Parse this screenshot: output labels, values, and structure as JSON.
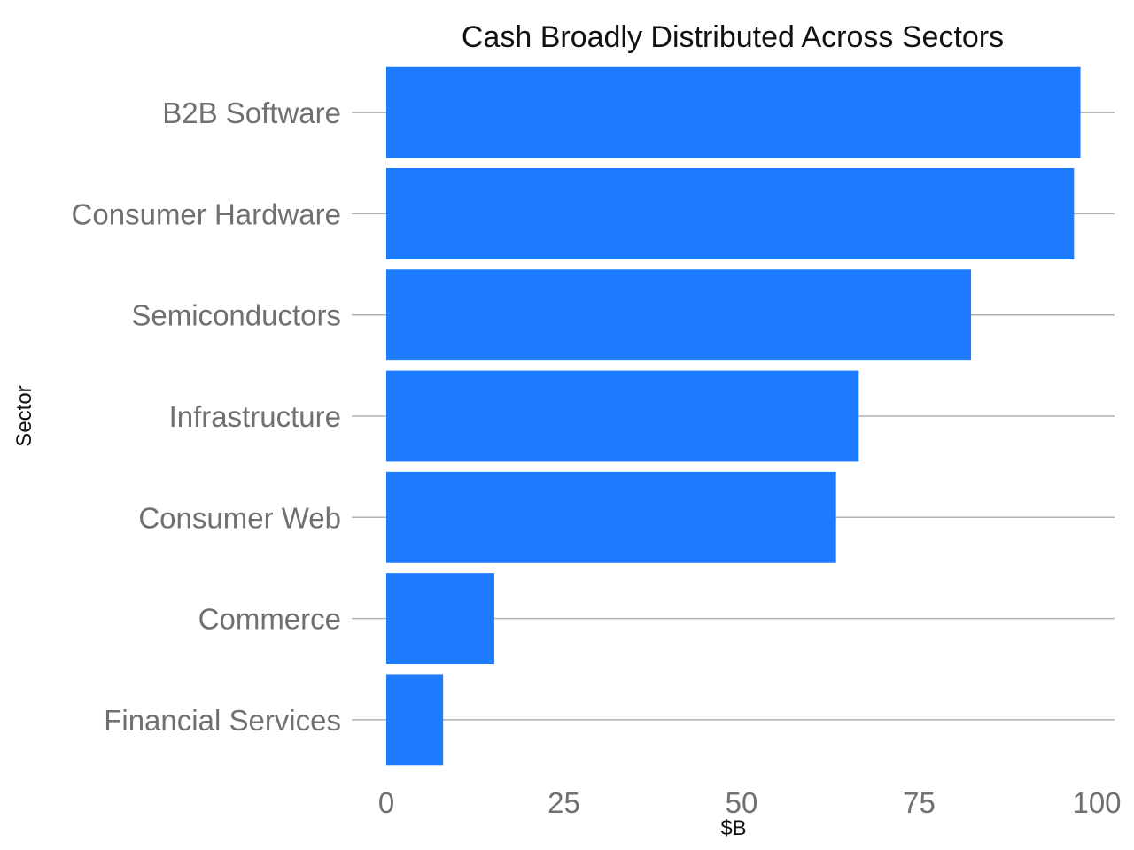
{
  "chart_data": {
    "type": "bar",
    "orientation": "horizontal",
    "title": "Cash Broadly Distributed Across Sectors",
    "xlabel": "$B",
    "ylabel": "Sector",
    "categories": [
      "B2B Software",
      "Consumer Hardware",
      "Semiconductors",
      "Infrastructure",
      "Consumer Web",
      "Commerce",
      "Financial Services"
    ],
    "values": [
      97.7,
      96.8,
      82.3,
      66.5,
      63.3,
      15.2,
      8.0
    ],
    "xlim": [
      0,
      100
    ],
    "xticks": [
      0,
      25,
      50,
      75,
      100
    ],
    "xtick_labels": [
      "0",
      "25",
      "50",
      "75",
      "100"
    ],
    "bar_color": "#1c7bff",
    "grid": true,
    "legend": "none"
  }
}
